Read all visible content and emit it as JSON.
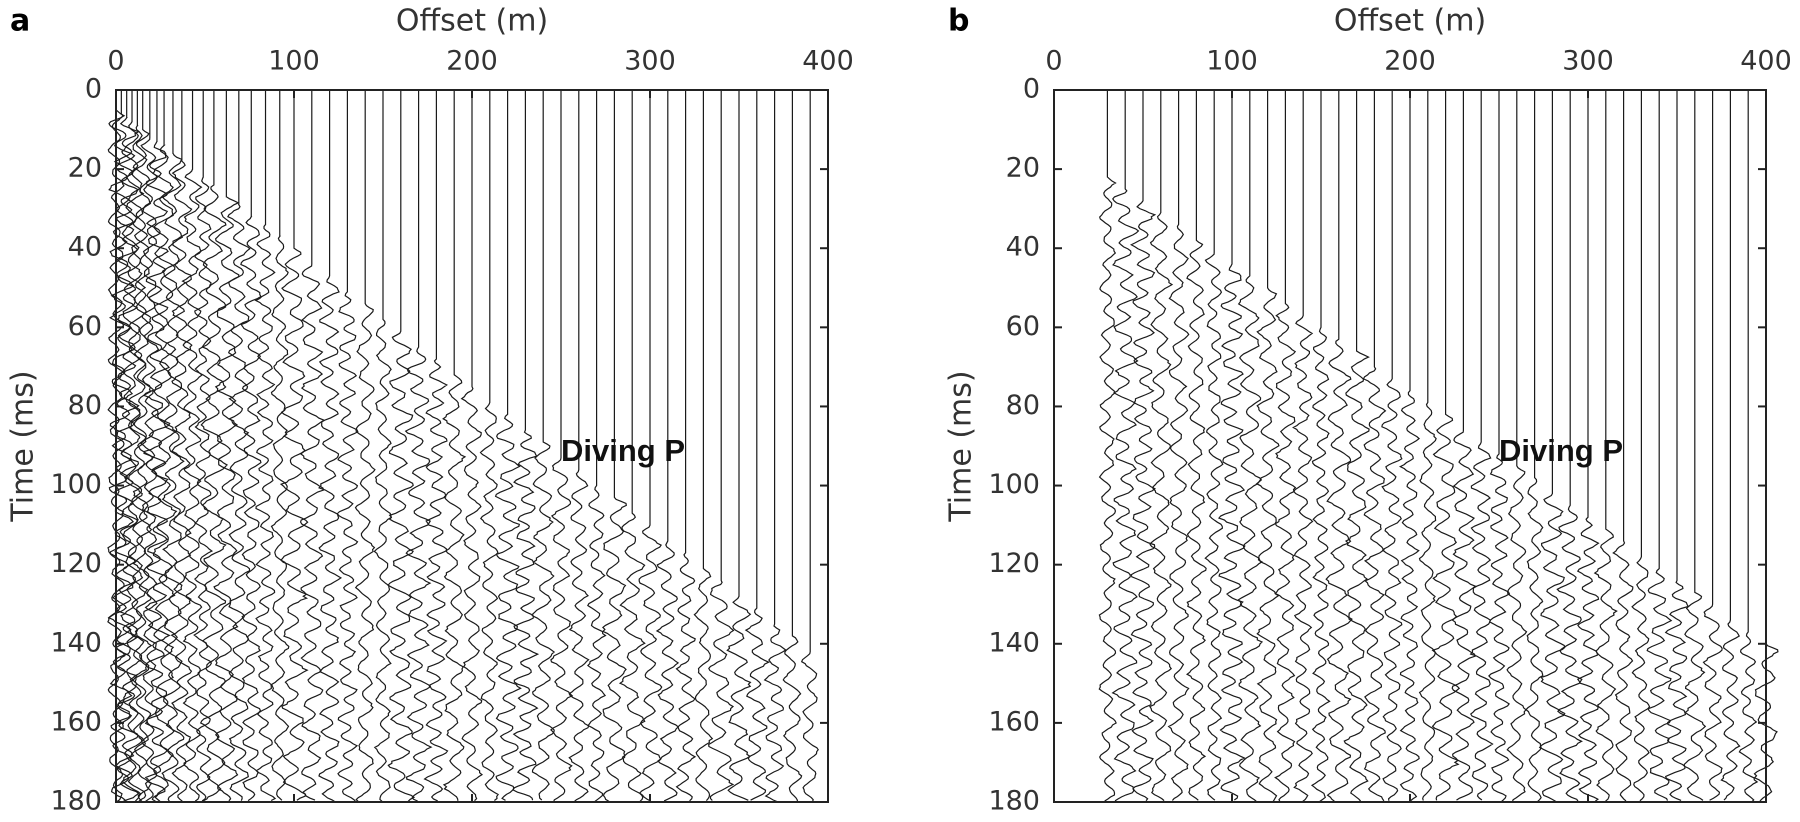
{
  "chart_data": [
    {
      "type": "wiggle",
      "label": "a",
      "xlabel": "Offset (m)",
      "ylabel": "Time (ms)",
      "annotation": "Diving P",
      "xlim": [
        0,
        400
      ],
      "xticks": [
        0,
        100,
        200,
        300,
        400
      ],
      "ylim": [
        0,
        180
      ],
      "yticks": [
        0,
        20,
        40,
        60,
        80,
        100,
        120,
        140,
        160,
        180
      ],
      "y_reversed": true,
      "xaxis_position": "top",
      "color": "#1a1a1a",
      "x": [
        0,
        3,
        6,
        9,
        12,
        15,
        19,
        23,
        27,
        32,
        37,
        43,
        49,
        55,
        62,
        69,
        76,
        84,
        92,
        100,
        110,
        120,
        130,
        140,
        150,
        160,
        170,
        180,
        190,
        200,
        210,
        220,
        230,
        240,
        250,
        260,
        270,
        280,
        290,
        300,
        310,
        320,
        330,
        340,
        350,
        360,
        370,
        380,
        390
      ],
      "values": [
        5,
        6,
        7,
        8,
        9,
        10,
        12,
        13,
        14,
        16,
        18,
        20,
        22,
        24,
        27,
        29,
        32,
        34,
        37,
        40,
        44,
        47,
        51,
        54,
        58,
        61,
        65,
        68,
        72,
        75,
        79,
        82,
        86,
        89,
        93,
        96,
        100,
        103,
        107,
        110,
        114,
        117,
        121,
        124,
        128,
        131,
        135,
        138,
        142
      ]
    },
    {
      "type": "wiggle",
      "label": "b",
      "xlabel": "Offset (m)",
      "ylabel": "Time (ms)",
      "annotation": "Diving P",
      "xlim": [
        0,
        400
      ],
      "xticks": [
        0,
        100,
        200,
        300,
        400
      ],
      "ylim": [
        0,
        180
      ],
      "yticks": [
        0,
        20,
        40,
        60,
        80,
        100,
        120,
        140,
        160,
        180
      ],
      "y_reversed": true,
      "xaxis_position": "top",
      "color": "#1a1a1a",
      "x": [
        30,
        40,
        50,
        60,
        70,
        80,
        90,
        100,
        110,
        120,
        130,
        140,
        150,
        160,
        170,
        180,
        190,
        200,
        210,
        220,
        230,
        240,
        250,
        260,
        270,
        280,
        290,
        300,
        310,
        320,
        330,
        340,
        350,
        360,
        370,
        380,
        390,
        400
      ],
      "values": [
        22,
        25,
        28,
        31,
        34,
        38,
        41,
        44,
        47,
        50,
        54,
        57,
        60,
        63,
        66,
        70,
        73,
        76,
        79,
        82,
        86,
        89,
        92,
        95,
        98,
        102,
        105,
        108,
        111,
        114,
        118,
        121,
        124,
        127,
        130,
        134,
        137,
        140
      ]
    }
  ]
}
